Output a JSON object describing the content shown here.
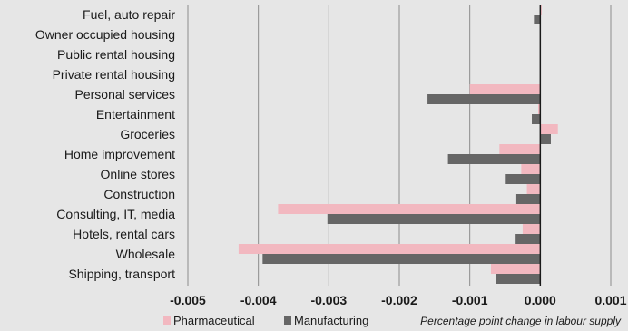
{
  "chart_data": {
    "type": "bar",
    "orientation": "horizontal",
    "categories": [
      "Fuel, auto repair",
      "Owner occupied housing",
      "Public rental housing",
      "Private rental housing",
      "Personal services",
      "Entertainment",
      "Groceries",
      "Home improvement",
      "Online stores",
      "Construction",
      "Consulting, IT, media",
      "Hotels, rental cars",
      "Wholesale",
      "Shipping, transport"
    ],
    "series": [
      {
        "name": "Pharmaceutical",
        "color": "#f2b8c0",
        "values": [
          2e-05,
          0,
          0,
          0,
          -0.001,
          -3e-05,
          0.00025,
          -0.00058,
          -0.00027,
          -0.00019,
          -0.00372,
          -0.00025,
          -0.00428,
          -0.0007
        ]
      },
      {
        "name": "Manufacturing",
        "color": "#666666",
        "values": [
          -9e-05,
          0,
          0,
          0,
          -0.0016,
          -0.00012,
          0.00015,
          -0.00131,
          -0.00049,
          -0.00034,
          -0.00302,
          -0.00035,
          -0.00394,
          -0.00063
        ]
      }
    ],
    "xlim": [
      -0.005,
      0.001
    ],
    "x_ticks": [
      "-0.005",
      "-0.004",
      "-0.003",
      "-0.002",
      "-0.001",
      "0.000",
      "0.001"
    ],
    "xlabel": "Percentage point change in labour supply",
    "grid": "vertical",
    "legend_position": "bottom"
  }
}
